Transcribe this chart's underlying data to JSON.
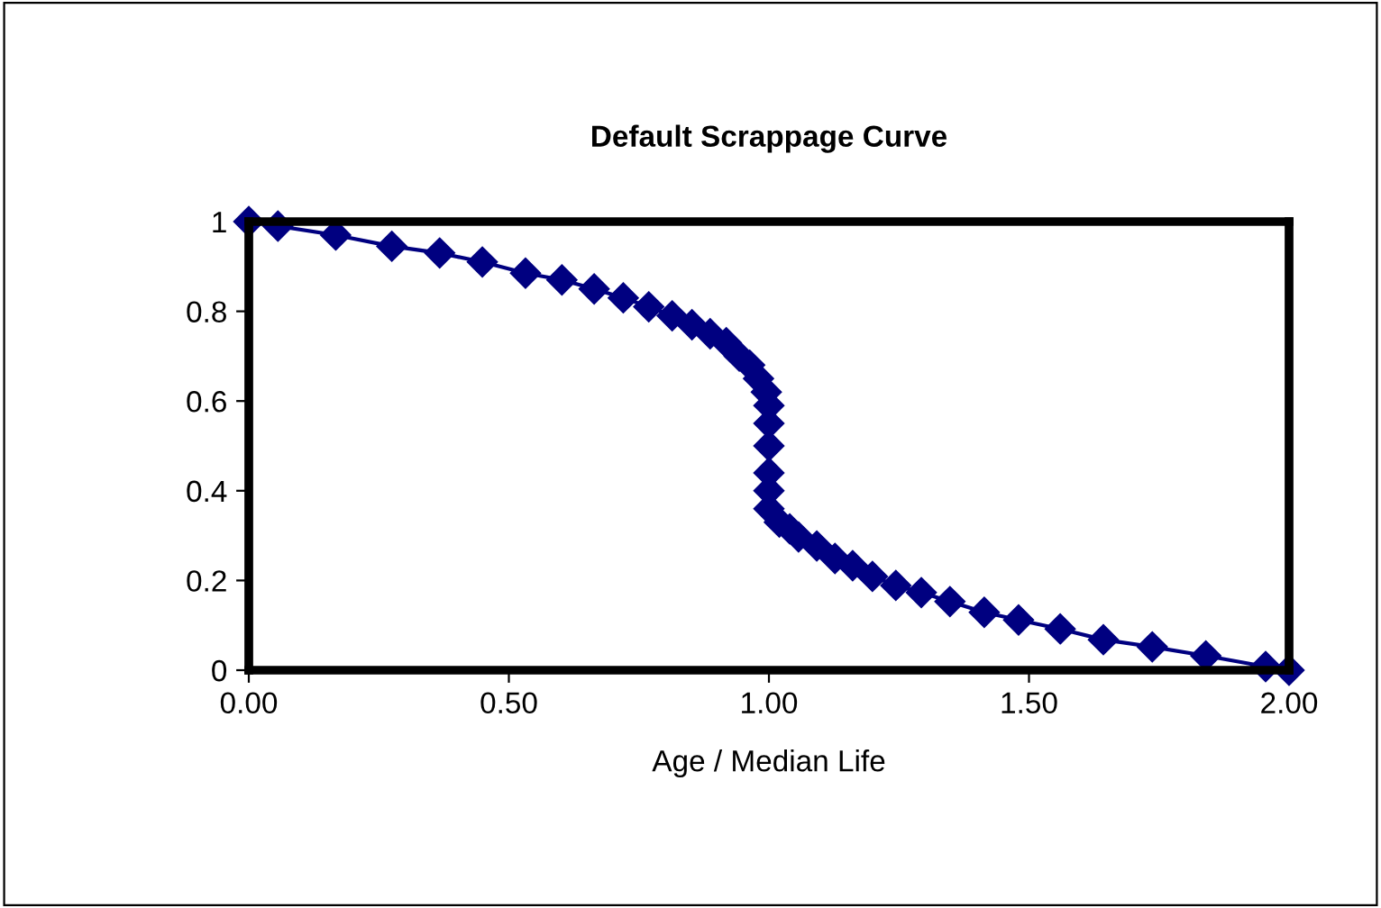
{
  "chart_data": {
    "type": "line",
    "title": "Default Scrappage Curve",
    "xlabel": "Age / Median Life",
    "series": [
      {
        "color": "#000080",
        "marker": "diamond",
        "x": [
          0,
          0.056,
          0.167,
          0.275,
          0.367,
          0.449,
          0.532,
          0.602,
          0.664,
          0.72,
          0.769,
          0.814,
          0.852,
          0.887,
          0.918,
          0.943,
          0.963,
          0.98,
          0.995,
          1.0,
          1.0,
          1.0,
          1.0,
          1.0,
          1.0,
          1.02,
          1.04,
          1.057,
          1.092,
          1.127,
          1.161,
          1.199,
          1.244,
          1.293,
          1.348,
          1.414,
          1.48,
          1.56,
          1.643,
          1.737,
          1.84,
          1.955,
          2.0
        ],
        "values": [
          1,
          0.99,
          0.97,
          0.945,
          0.93,
          0.91,
          0.885,
          0.87,
          0.85,
          0.83,
          0.81,
          0.79,
          0.77,
          0.75,
          0.73,
          0.7,
          0.68,
          0.65,
          0.62,
          0.59,
          0.55,
          0.5,
          0.44,
          0.4,
          0.36,
          0.33,
          0.315,
          0.297,
          0.277,
          0.249,
          0.233,
          0.209,
          0.189,
          0.173,
          0.153,
          0.129,
          0.112,
          0.092,
          0.068,
          0.052,
          0.032,
          0.008,
          0
        ]
      }
    ],
    "xlim": [
      0,
      2
    ],
    "xticks": [
      {
        "value": 0,
        "label": "0.00"
      },
      {
        "value": 0.5,
        "label": "0.50"
      },
      {
        "value": 1,
        "label": "1.00"
      },
      {
        "value": 1.5,
        "label": "1.50"
      },
      {
        "value": 2,
        "label": "2.00"
      }
    ],
    "ylim": [
      0,
      1
    ],
    "yticks": [
      0,
      0.2,
      0.4,
      0.6,
      0.8,
      1
    ],
    "grid": false,
    "legend": false,
    "line_style": "solid"
  }
}
